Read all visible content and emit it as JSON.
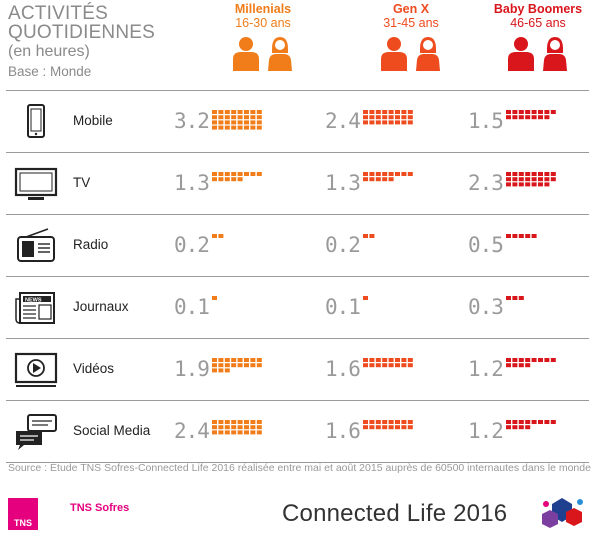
{
  "title": {
    "line1": "ACTIVITÉS",
    "line2": "QUOTIDIENNES",
    "line3": "(en heures)",
    "line4": "Base : Monde"
  },
  "generations": [
    {
      "name": "Millenials",
      "age": "16-30 ans",
      "color": "#f07d1a"
    },
    {
      "name": "Gen X",
      "age": "31-45 ans",
      "color": "#ee4b1f"
    },
    {
      "name": "Baby Boomers",
      "age": "46-65 ans",
      "color": "#d8161c"
    }
  ],
  "activities": [
    {
      "label": "Mobile",
      "icon": "mobile-phone-icon"
    },
    {
      "label": "TV",
      "icon": "tv-icon"
    },
    {
      "label": "Radio",
      "icon": "radio-icon"
    },
    {
      "label": "Journaux",
      "icon": "newspaper-icon"
    },
    {
      "label": "Vidéos",
      "icon": "video-player-icon"
    },
    {
      "label": "Social Media",
      "icon": "chat-bubbles-icon"
    }
  ],
  "chart_data": {
    "type": "table",
    "unit": "en heures",
    "rows": [
      "Mobile",
      "TV",
      "Radio",
      "Journaux",
      "Vidéos",
      "Social Media"
    ],
    "series": [
      {
        "name": "Millenials",
        "values": [
          3.2,
          1.3,
          0.2,
          0.1,
          1.9,
          2.4
        ]
      },
      {
        "name": "Gen X",
        "values": [
          2.4,
          1.3,
          0.2,
          0.1,
          1.6,
          1.6
        ]
      },
      {
        "name": "Baby Boomers",
        "values": [
          1.5,
          2.3,
          0.5,
          0.3,
          1.2,
          1.2
        ]
      }
    ],
    "values_text": [
      [
        "3.2",
        "2.4",
        "1.5"
      ],
      [
        "1.3",
        "1.3",
        "2.3"
      ],
      [
        "0.2",
        "0.2",
        "0.5"
      ],
      [
        "0.1",
        "0.1",
        "0.3"
      ],
      [
        "1.9",
        "1.6",
        "1.2"
      ],
      [
        "2.4",
        "1.6",
        "1.2"
      ]
    ]
  },
  "footer": {
    "source": "Source : Étude TNS Sofres-Connected Life 2016 réalisée entre mai et août 2015 auprès de 60500 internautes dans le monde",
    "tns_logo": "TNS",
    "tns_name": "TNS Sofres",
    "brand": "Connected Life 2016"
  }
}
